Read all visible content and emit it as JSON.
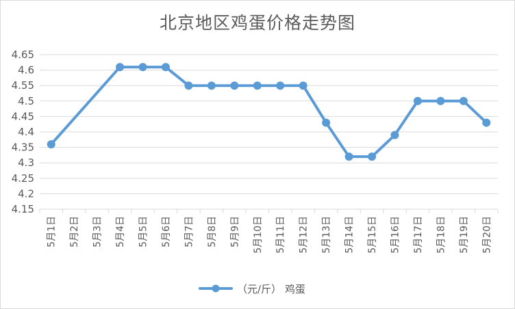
{
  "chart_data": {
    "type": "line",
    "title": "北京地区鸡蛋价格走势图",
    "xlabel": "",
    "ylabel": "",
    "ylim": [
      4.15,
      4.65
    ],
    "yticks": [
      "4.65",
      "4.6",
      "4.55",
      "4.5",
      "4.45",
      "4.4",
      "4.35",
      "4.3",
      "4.25",
      "4.2",
      "4.15"
    ],
    "categories": [
      "5月1日",
      "5月2日",
      "5月3日",
      "5月4日",
      "5月5日",
      "5月6日",
      "5月7日",
      "5月8日",
      "5月9日",
      "5月10日",
      "5月11日",
      "5月12日",
      "5月13日",
      "5月14日",
      "5月15日",
      "5月16日",
      "5月17日",
      "5月18日",
      "5月19日",
      "5月20日"
    ],
    "series": [
      {
        "name": "（元/斤） 鸡蛋",
        "color": "#5b9bd5",
        "values": [
          4.36,
          null,
          null,
          4.61,
          4.61,
          4.61,
          4.55,
          4.55,
          4.55,
          4.55,
          4.55,
          4.55,
          4.43,
          4.32,
          4.32,
          4.39,
          4.5,
          4.5,
          4.5,
          4.43
        ]
      }
    ],
    "grid": true,
    "legend_position": "bottom"
  }
}
